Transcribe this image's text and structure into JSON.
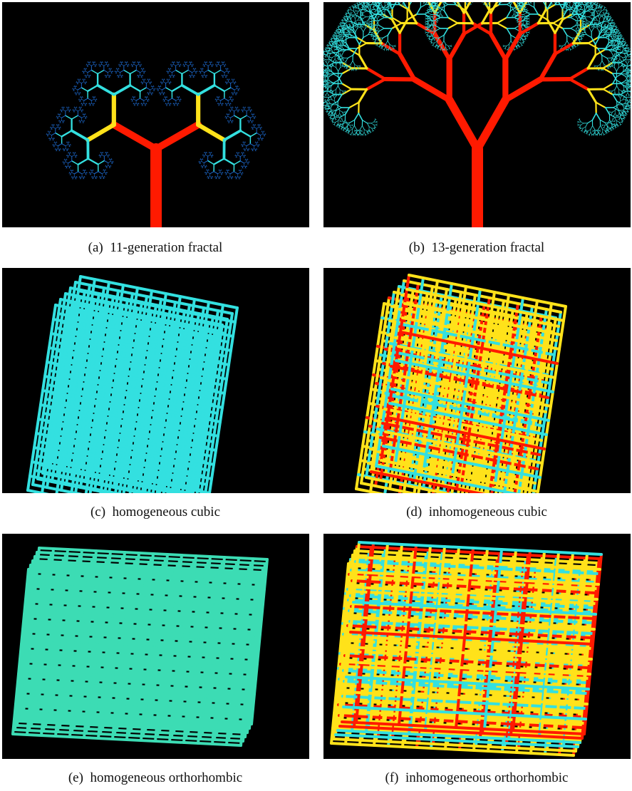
{
  "panels": [
    {
      "id": "a",
      "label": "(a)",
      "caption": "11-generation fractal"
    },
    {
      "id": "b",
      "label": "(b)",
      "caption": "13-generation fractal"
    },
    {
      "id": "c",
      "label": "(c)",
      "caption": "homogeneous cubic"
    },
    {
      "id": "d",
      "label": "(d)",
      "caption": "inhomogeneous cubic"
    },
    {
      "id": "e",
      "label": "(e)",
      "caption": "homogeneous orthorhombic"
    },
    {
      "id": "f",
      "label": "(f)",
      "caption": "inhomogeneous orthorhombic"
    }
  ],
  "colors": {
    "background": "#000000",
    "red": "#ff1a00",
    "yellow": "#ffe21a",
    "cyan": "#33e0e0",
    "blue": "#1f6fd8",
    "teal": "#3cdcb4"
  }
}
